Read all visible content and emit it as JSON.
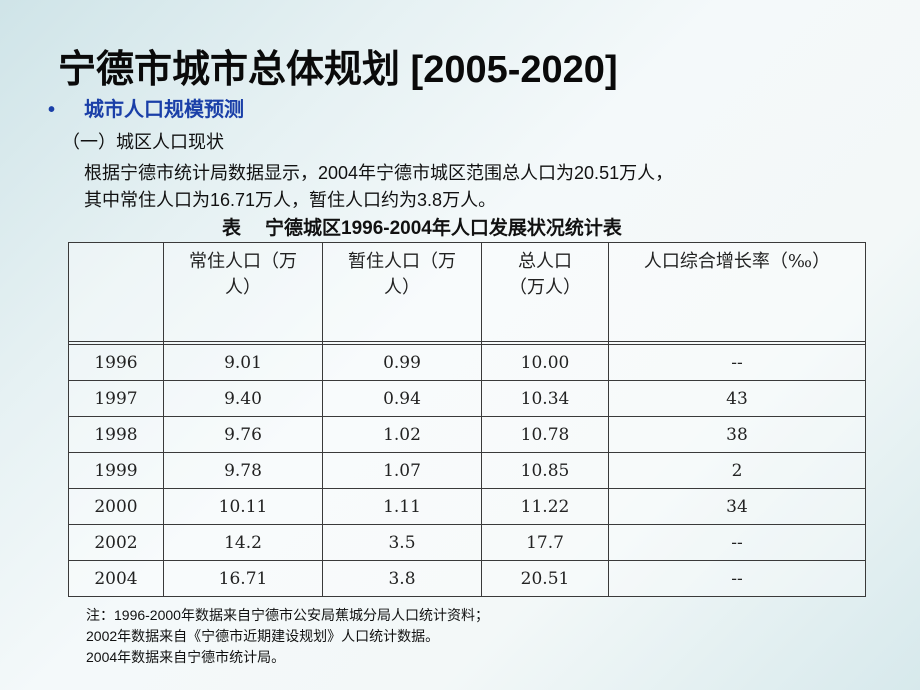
{
  "title": "宁德市城市总体规划 [2005-2020]",
  "bullet": {
    "symbol": "•",
    "text": "城市人口规模预测"
  },
  "subheading": "（一）城区人口现状",
  "paragraph": {
    "line1": "根据宁德市统计局数据显示，2004年宁德市城区范围总人口为20.51万人，",
    "line2": "其中常住人口为16.71万人，暂住人口约为3.8万人。"
  },
  "table_caption": {
    "prefix": "表",
    "text": "宁德城区1996-2004年人口发展状况统计表"
  },
  "table": {
    "headers": [
      "",
      "常住人口（万人）",
      "暂住人口（万人）",
      "总人口（万人）",
      "人口综合增长率（‰）"
    ],
    "rows": [
      [
        "1996",
        "9.01",
        "0.99",
        "10.00",
        "--"
      ],
      [
        "1997",
        "9.40",
        "0.94",
        "10.34",
        "43"
      ],
      [
        "1998",
        "9.76",
        "1.02",
        "10.78",
        "38"
      ],
      [
        "1999",
        "9.78",
        "1.07",
        "10.85",
        "2"
      ],
      [
        "2000",
        "10.11",
        "1.11",
        "11.22",
        "34"
      ],
      [
        "2002",
        "14.2",
        "3.5",
        "17.7",
        "--"
      ],
      [
        "2004",
        "16.71",
        "3.8",
        "20.51",
        "--"
      ]
    ]
  },
  "notes": [
    "注：1996-2000年数据来自宁德市公安局蕉城分局人口统计资料；",
    "2002年数据来自《宁德市近期建设规划》人口统计数据。",
    "2004年数据来自宁德市统计局。"
  ]
}
